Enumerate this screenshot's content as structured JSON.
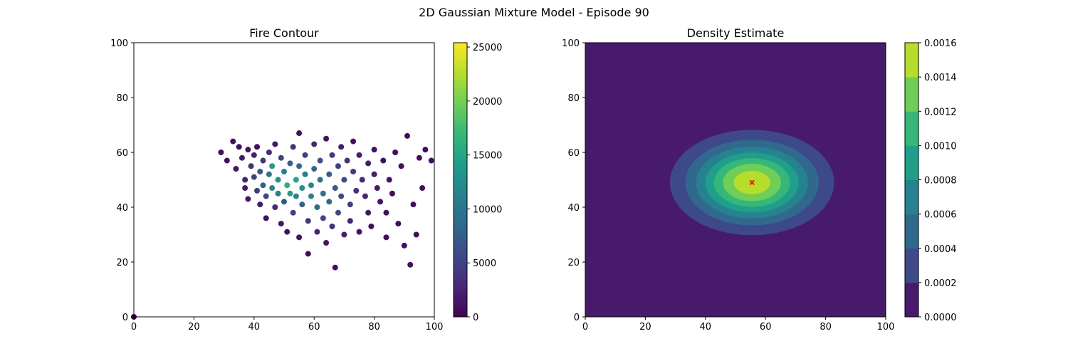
{
  "figure": {
    "suptitle": "2D Gaussian Mixture Model - Episode 90"
  },
  "chart_data": [
    {
      "type": "scatter",
      "title": "Fire Contour",
      "xlabel": "",
      "ylabel": "",
      "xlim": [
        0,
        100
      ],
      "ylim": [
        0,
        100
      ],
      "xticks": [
        0,
        20,
        40,
        60,
        80,
        100
      ],
      "yticks": [
        0,
        20,
        40,
        60,
        80,
        100
      ],
      "grid": false,
      "colormap": "viridis",
      "colorbar": {
        "min": 0,
        "max": 25400,
        "ticks": [
          0,
          5000,
          10000,
          15000,
          20000,
          25000
        ]
      },
      "cloud_summary": {
        "x_range": [
          28,
          100
        ],
        "y_range": [
          17,
          69
        ],
        "peak_center": [
          51,
          48
        ]
      },
      "points": [
        [
          0,
          0,
          100
        ],
        [
          29,
          60,
          900
        ],
        [
          31,
          57,
          900
        ],
        [
          33,
          64,
          900
        ],
        [
          34,
          54,
          1200
        ],
        [
          35,
          62,
          900
        ],
        [
          36,
          58,
          1500
        ],
        [
          37,
          50,
          2500
        ],
        [
          37,
          47,
          1800
        ],
        [
          38,
          61,
          1200
        ],
        [
          38,
          43,
          1500
        ],
        [
          39,
          55,
          3500
        ],
        [
          40,
          51,
          5000
        ],
        [
          40,
          59,
          2000
        ],
        [
          41,
          46,
          4500
        ],
        [
          41,
          62,
          900
        ],
        [
          42,
          53,
          7000
        ],
        [
          42,
          41,
          1800
        ],
        [
          43,
          57,
          4000
        ],
        [
          43,
          48,
          8000
        ],
        [
          44,
          36,
          900
        ],
        [
          44,
          44,
          5500
        ],
        [
          45,
          52,
          9500
        ],
        [
          45,
          60,
          3000
        ],
        [
          46,
          55,
          14000
        ],
        [
          46,
          47,
          12000
        ],
        [
          47,
          40,
          3000
        ],
        [
          47,
          63,
          1500
        ],
        [
          48,
          50,
          13000
        ],
        [
          48,
          45,
          11000
        ],
        [
          49,
          58,
          5000
        ],
        [
          49,
          34,
          1200
        ],
        [
          50,
          53,
          11000
        ],
        [
          50,
          42,
          7000
        ],
        [
          51,
          48,
          16000
        ],
        [
          51,
          31,
          900
        ],
        [
          52,
          56,
          8000
        ],
        [
          52,
          45,
          14000
        ],
        [
          53,
          62,
          3500
        ],
        [
          53,
          38,
          5000
        ],
        [
          54,
          50,
          15000
        ],
        [
          54,
          44,
          12000
        ],
        [
          55,
          67,
          900
        ],
        [
          55,
          29,
          1200
        ],
        [
          55,
          55,
          9000
        ],
        [
          56,
          47,
          13000
        ],
        [
          56,
          41,
          8000
        ],
        [
          57,
          52,
          11000
        ],
        [
          57,
          59,
          5000
        ],
        [
          58,
          35,
          4000
        ],
        [
          58,
          23,
          900
        ],
        [
          59,
          48,
          12000
        ],
        [
          59,
          44,
          11500
        ],
        [
          60,
          63,
          2500
        ],
        [
          60,
          54,
          8000
        ],
        [
          61,
          40,
          9000
        ],
        [
          61,
          31,
          2500
        ],
        [
          62,
          50,
          10000
        ],
        [
          62,
          57,
          6000
        ],
        [
          63,
          45,
          9500
        ],
        [
          63,
          36,
          5500
        ],
        [
          64,
          65,
          1200
        ],
        [
          64,
          27,
          1200
        ],
        [
          65,
          52,
          7500
        ],
        [
          65,
          42,
          8500
        ],
        [
          66,
          59,
          4000
        ],
        [
          66,
          33,
          3500
        ],
        [
          67,
          47,
          7000
        ],
        [
          67,
          18,
          900
        ],
        [
          68,
          55,
          5000
        ],
        [
          68,
          38,
          5500
        ],
        [
          69,
          62,
          2000
        ],
        [
          69,
          44,
          6000
        ],
        [
          70,
          50,
          6000
        ],
        [
          70,
          30,
          2000
        ],
        [
          71,
          57,
          3500
        ],
        [
          72,
          41,
          4500
        ],
        [
          72,
          35,
          2500
        ],
        [
          73,
          53,
          4000
        ],
        [
          73,
          64,
          900
        ],
        [
          74,
          46,
          3500
        ],
        [
          75,
          59,
          2000
        ],
        [
          75,
          31,
          1200
        ],
        [
          76,
          50,
          3000
        ],
        [
          77,
          44,
          2500
        ],
        [
          78,
          56,
          1800
        ],
        [
          78,
          38,
          1500
        ],
        [
          79,
          33,
          900
        ],
        [
          80,
          52,
          2000
        ],
        [
          80,
          61,
          900
        ],
        [
          81,
          47,
          1500
        ],
        [
          82,
          42,
          1200
        ],
        [
          83,
          57,
          900
        ],
        [
          84,
          38,
          900
        ],
        [
          84,
          29,
          900
        ],
        [
          85,
          50,
          1200
        ],
        [
          86,
          45,
          900
        ],
        [
          87,
          60,
          900
        ],
        [
          88,
          34,
          900
        ],
        [
          89,
          55,
          900
        ],
        [
          90,
          26,
          900
        ],
        [
          91,
          66,
          900
        ],
        [
          92,
          19,
          900
        ],
        [
          93,
          41,
          900
        ],
        [
          94,
          30,
          900
        ],
        [
          95,
          58,
          900
        ],
        [
          96,
          47,
          900
        ],
        [
          97,
          61,
          900
        ],
        [
          99,
          57,
          900
        ]
      ]
    },
    {
      "type": "heatmap",
      "title": "Density Estimate",
      "xlabel": "",
      "ylabel": "",
      "xlim": [
        0,
        100
      ],
      "ylim": [
        0,
        100
      ],
      "xticks": [
        0,
        20,
        40,
        60,
        80,
        100
      ],
      "yticks": [
        0,
        20,
        40,
        60,
        80,
        100
      ],
      "grid": false,
      "colormap": "viridis",
      "center": [
        55.5,
        49
      ],
      "sigma": [
        13.5,
        9.5
      ],
      "peak_density": 0.00155,
      "levels": [
        0,
        0.0002,
        0.0004,
        0.0006,
        0.0008,
        0.001,
        0.0012,
        0.0014,
        0.0016
      ],
      "level_colors": [
        "#481a6c",
        "#3e4989",
        "#31688e",
        "#26828e",
        "#1f9e89",
        "#35b779",
        "#6ece58",
        "#b5de2b"
      ],
      "marker": {
        "shape": "x",
        "color": "#ff0000",
        "x": 55.5,
        "y": 49
      },
      "colorbar": {
        "min": 0,
        "max": 0.0016,
        "tick_labels": [
          "0.0000",
          "0.0002",
          "0.0004",
          "0.0006",
          "0.0008",
          "0.0010",
          "0.0012",
          "0.0014",
          "0.0016"
        ],
        "band_colors": [
          "#481a6c",
          "#3e4989",
          "#31688e",
          "#26828e",
          "#1f9e89",
          "#35b779",
          "#6ece58",
          "#b5de2b"
        ]
      }
    }
  ]
}
